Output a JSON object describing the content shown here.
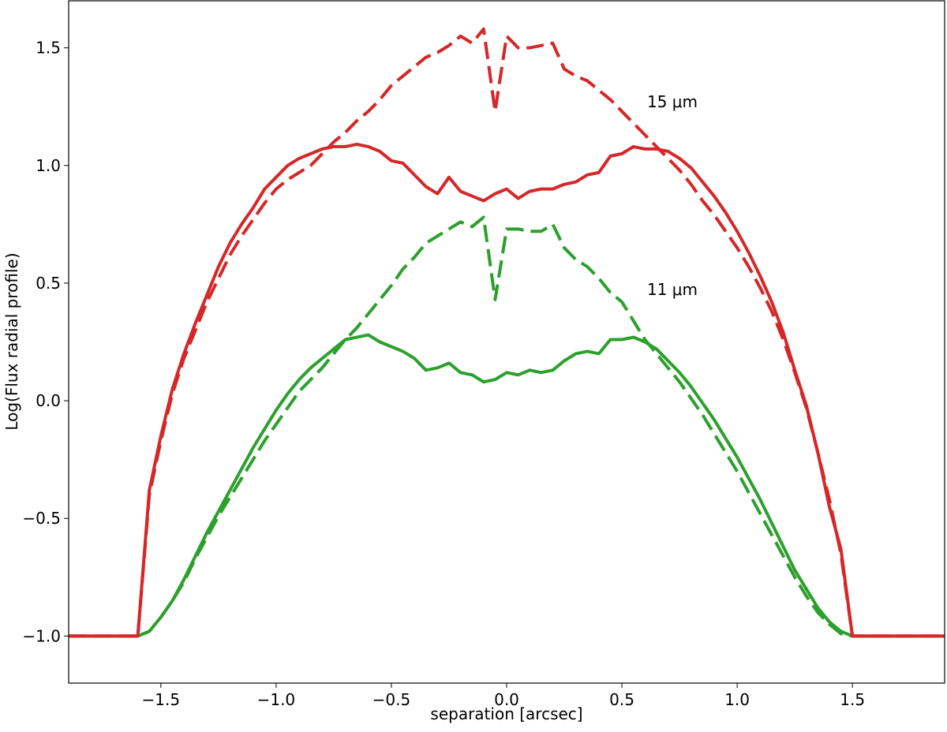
{
  "chart_data": {
    "type": "line",
    "xlabel": "separation [arcsec]",
    "ylabel": "Log(Flux radial profile)",
    "annotations": [
      "15 μm",
      "11 μm"
    ],
    "xlim": [
      -1.9,
      1.9
    ],
    "ylim": [
      -1.2,
      1.7
    ],
    "xticks": [
      {
        "value": -1.5,
        "label": "−1.5"
      },
      {
        "value": -1.0,
        "label": "−1.0"
      },
      {
        "value": -0.5,
        "label": "−0.5"
      },
      {
        "value": 0,
        "label": "0.0"
      },
      0.5,
      {
        "value": 1.0,
        "label": "1.0"
      },
      1.5
    ],
    "yticks": [
      {
        "value": -1.0,
        "label": "−1.0"
      },
      {
        "value": -0.5,
        "label": "−0.5"
      },
      {
        "value": 0,
        "label": "0.0"
      },
      0.5,
      {
        "value": 1.0,
        "label": "1.0"
      },
      1.5
    ],
    "x": [
      -1.9,
      -1.6,
      -1.55,
      -1.5,
      -1.45,
      -1.4,
      -1.35,
      -1.3,
      -1.25,
      -1.2,
      -1.15,
      -1.1,
      -1.05,
      -1.0,
      -0.95,
      -0.9,
      -0.85,
      -0.8,
      -0.75,
      -0.7,
      -0.65,
      -0.6,
      -0.55,
      -0.5,
      -0.45,
      -0.4,
      -0.35,
      -0.3,
      -0.25,
      -0.2,
      -0.15,
      -0.1,
      -0.05,
      0,
      0.05,
      0.1,
      0.15,
      0.2,
      0.25,
      0.3,
      0.35,
      0.4,
      0.45,
      0.5,
      0.55,
      0.6,
      0.65,
      0.7,
      0.75,
      0.8,
      0.85,
      0.9,
      0.95,
      1.0,
      1.05,
      1.1,
      1.15,
      1.2,
      1.25,
      1.3,
      1.35,
      1.4,
      1.45,
      1.5,
      1.9
    ],
    "series": [
      {
        "color": "#2ca02c",
        "dashed": true,
        "values": [
          -1.0,
          -1.0,
          -0.98,
          -0.92,
          -0.85,
          -0.77,
          -0.67,
          -0.58,
          -0.49,
          -0.41,
          -0.33,
          -0.25,
          -0.17,
          -0.1,
          -0.03,
          0.04,
          0.09,
          0.14,
          0.2,
          0.26,
          0.31,
          0.37,
          0.43,
          0.49,
          0.56,
          0.61,
          0.67,
          0.7,
          0.73,
          0.76,
          0.74,
          0.78,
          0.43,
          0.73,
          0.73,
          0.72,
          0.72,
          0.75,
          0.65,
          0.6,
          0.57,
          0.52,
          0.46,
          0.42,
          0.34,
          0.26,
          0.2,
          0.14,
          0.08,
          0.01,
          -0.06,
          -0.14,
          -0.22,
          -0.3,
          -0.39,
          -0.48,
          -0.57,
          -0.66,
          -0.75,
          -0.83,
          -0.9,
          -0.95,
          -0.99,
          -1.0,
          -1.0
        ]
      },
      {
        "color": "#2ca02c",
        "dashed": false,
        "values": [
          -1.0,
          -1.0,
          -0.98,
          -0.92,
          -0.85,
          -0.76,
          -0.66,
          -0.56,
          -0.47,
          -0.38,
          -0.29,
          -0.2,
          -0.12,
          -0.04,
          0.03,
          0.09,
          0.14,
          0.18,
          0.22,
          0.26,
          0.27,
          0.28,
          0.25,
          0.23,
          0.21,
          0.18,
          0.13,
          0.14,
          0.16,
          0.12,
          0.11,
          0.08,
          0.09,
          0.12,
          0.11,
          0.13,
          0.12,
          0.13,
          0.17,
          0.2,
          0.21,
          0.2,
          0.26,
          0.26,
          0.27,
          0.25,
          0.22,
          0.17,
          0.12,
          0.06,
          -0.01,
          -0.08,
          -0.16,
          -0.24,
          -0.33,
          -0.42,
          -0.52,
          -0.62,
          -0.72,
          -0.8,
          -0.88,
          -0.94,
          -0.98,
          -1.0,
          -1.0
        ]
      },
      {
        "color": "#d62728",
        "dashed": true,
        "values": [
          -1.0,
          -1.0,
          -0.4,
          -0.17,
          0.03,
          0.18,
          0.3,
          0.42,
          0.52,
          0.62,
          0.7,
          0.77,
          0.84,
          0.9,
          0.94,
          0.97,
          1.0,
          1.05,
          1.1,
          1.14,
          1.19,
          1.23,
          1.28,
          1.34,
          1.38,
          1.42,
          1.46,
          1.48,
          1.51,
          1.55,
          1.52,
          1.58,
          1.23,
          1.55,
          1.5,
          1.5,
          1.51,
          1.52,
          1.41,
          1.38,
          1.36,
          1.32,
          1.28,
          1.23,
          1.18,
          1.13,
          1.08,
          1.03,
          0.98,
          0.92,
          0.85,
          0.79,
          0.72,
          0.65,
          0.57,
          0.48,
          0.38,
          0.26,
          0.12,
          -0.03,
          -0.22,
          -0.42,
          -0.65,
          -1.0,
          -1.0
        ]
      },
      {
        "color": "#d62728",
        "dashed": false,
        "values": [
          -1.0,
          -1.0,
          -0.38,
          -0.15,
          0.05,
          0.2,
          0.33,
          0.45,
          0.57,
          0.67,
          0.75,
          0.82,
          0.9,
          0.95,
          1.0,
          1.03,
          1.05,
          1.07,
          1.08,
          1.08,
          1.09,
          1.08,
          1.06,
          1.02,
          1.01,
          0.96,
          0.91,
          0.88,
          0.95,
          0.89,
          0.87,
          0.85,
          0.88,
          0.9,
          0.86,
          0.89,
          0.9,
          0.9,
          0.92,
          0.93,
          0.96,
          0.97,
          1.04,
          1.05,
          1.08,
          1.07,
          1.07,
          1.06,
          1.03,
          0.99,
          0.93,
          0.87,
          0.8,
          0.72,
          0.63,
          0.53,
          0.42,
          0.29,
          0.13,
          -0.02,
          -0.22,
          -0.45,
          -0.63,
          -1.0,
          -1.0
        ]
      }
    ]
  }
}
